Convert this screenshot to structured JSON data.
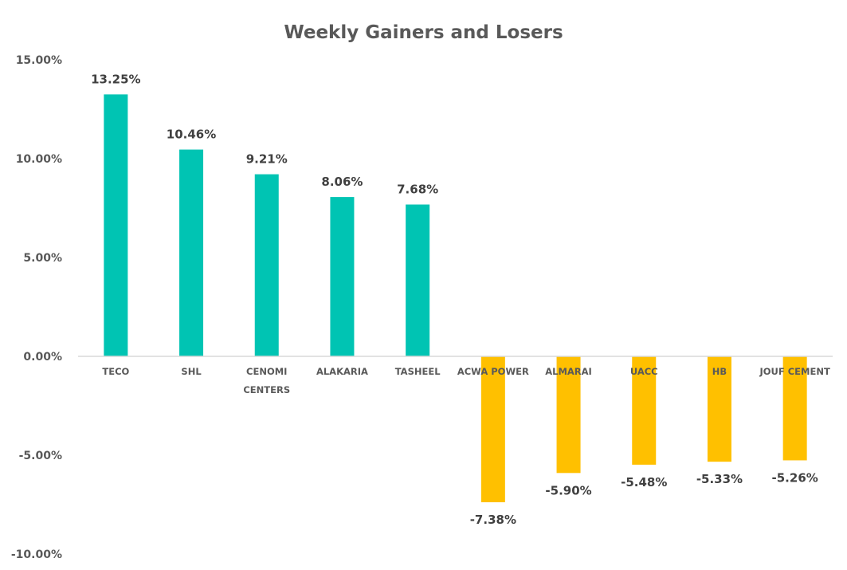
{
  "chart_data": {
    "type": "bar",
    "title": "Weekly Gainers and Losers",
    "xlabel": "",
    "ylabel": "",
    "ylim": [
      -10,
      15
    ],
    "yticks": [
      15,
      10,
      5,
      0,
      -5,
      -10
    ],
    "ytick_labels": [
      "15.00%",
      "10.00%",
      "5.00%",
      "0.00%",
      "-5.00%",
      "-10.00%"
    ],
    "grid": false,
    "legend": "none",
    "categories": [
      [
        "TECO"
      ],
      [
        "SHL"
      ],
      [
        "CENOMI",
        "CENTERS"
      ],
      [
        "ALAKARIA"
      ],
      [
        "TASHEEL"
      ],
      [
        "ACWA POWER"
      ],
      [
        "ALMARAI"
      ],
      [
        "UACC"
      ],
      [
        "HB"
      ],
      [
        "JOUF CEMENT"
      ]
    ],
    "values": [
      13.25,
      10.46,
      9.21,
      8.06,
      7.68,
      -7.38,
      -5.9,
      -5.48,
      -5.33,
      -5.26
    ],
    "value_labels": [
      "13.25%",
      "10.46%",
      "9.21%",
      "8.06%",
      "7.68%",
      "-7.38%",
      "-5.90%",
      "-5.48%",
      "-5.33%",
      "-5.26%"
    ],
    "colors": {
      "positive": "#00C4B3",
      "negative": "#FFC000",
      "axis": "#D9D9D9"
    }
  }
}
